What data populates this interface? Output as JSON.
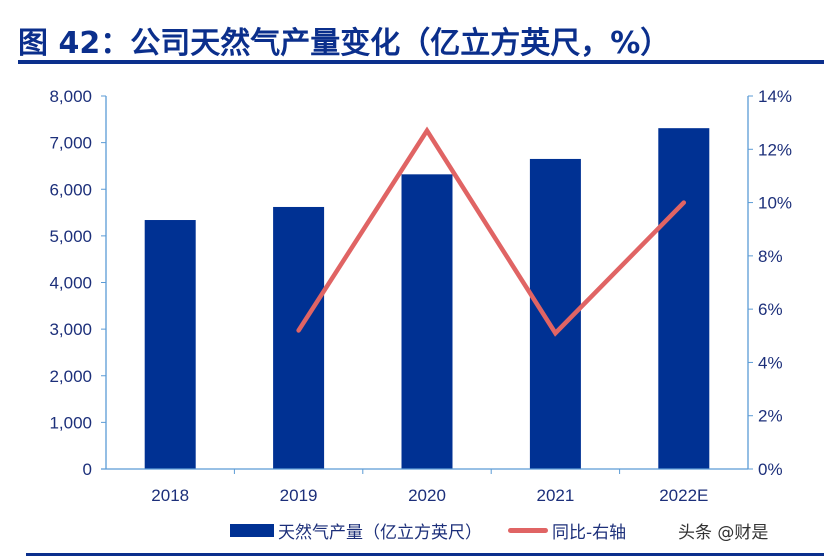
{
  "title": "图 42：公司天然气产量变化（亿立方英尺，%）",
  "watermark": "头条 @财是",
  "chart_data": {
    "type": "bar+line",
    "title": "图 42：公司天然气产量变化（亿立方英尺，%）",
    "categories": [
      "2018",
      "2019",
      "2020",
      "2021",
      "2022E"
    ],
    "series": [
      {
        "name": "天然气产量（亿立方英尺）",
        "type": "bar",
        "axis": "left",
        "color": "#003193",
        "values": [
          5340,
          5620,
          6320,
          6650,
          7310
        ]
      },
      {
        "name": "同比-右轴",
        "type": "line",
        "axis": "right",
        "color": "#e06464",
        "values": [
          null,
          5.2,
          12.7,
          5.1,
          10.0
        ]
      }
    ],
    "left_axis": {
      "ylim": [
        0,
        8000
      ],
      "ticks": [
        "0",
        "1,000",
        "2,000",
        "3,000",
        "4,000",
        "5,000",
        "6,000",
        "7,000",
        "8,000"
      ]
    },
    "right_axis": {
      "ylim": [
        0,
        14
      ],
      "ticks": [
        "0%",
        "2%",
        "4%",
        "6%",
        "8%",
        "10%",
        "12%",
        "14%"
      ]
    },
    "grid": false,
    "legend": "bottom"
  }
}
